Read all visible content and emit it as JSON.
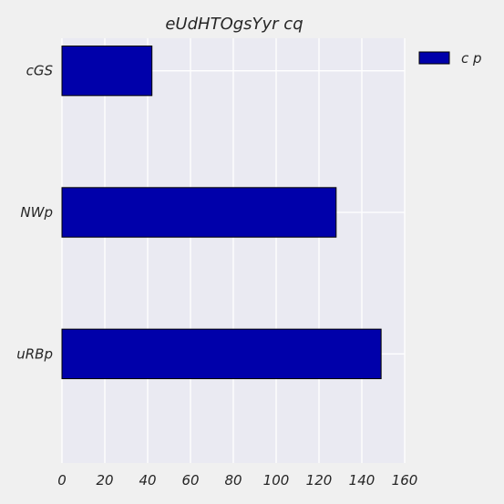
{
  "chart_data": {
    "type": "bar",
    "orientation": "horizontal",
    "title": "eUdHTOgsYyr cq",
    "xlabel": "",
    "ylabel": "",
    "categories": [
      "cGS",
      "NWp",
      "uRBp"
    ],
    "series": [
      {
        "name": "c p",
        "values": [
          42,
          128,
          149
        ],
        "color": "#0000aa"
      }
    ],
    "xlim": [
      0,
      160
    ],
    "xticks": [
      "0",
      "20",
      "40",
      "60",
      "80",
      "100",
      "120",
      "140",
      "160"
    ],
    "grid": true,
    "legend_position": "top-right"
  },
  "colors": {
    "page_background": "#f0f0f0",
    "plot_background": "#eaeaf2",
    "grid": "#ffffff",
    "bar_edge": "#000000"
  }
}
